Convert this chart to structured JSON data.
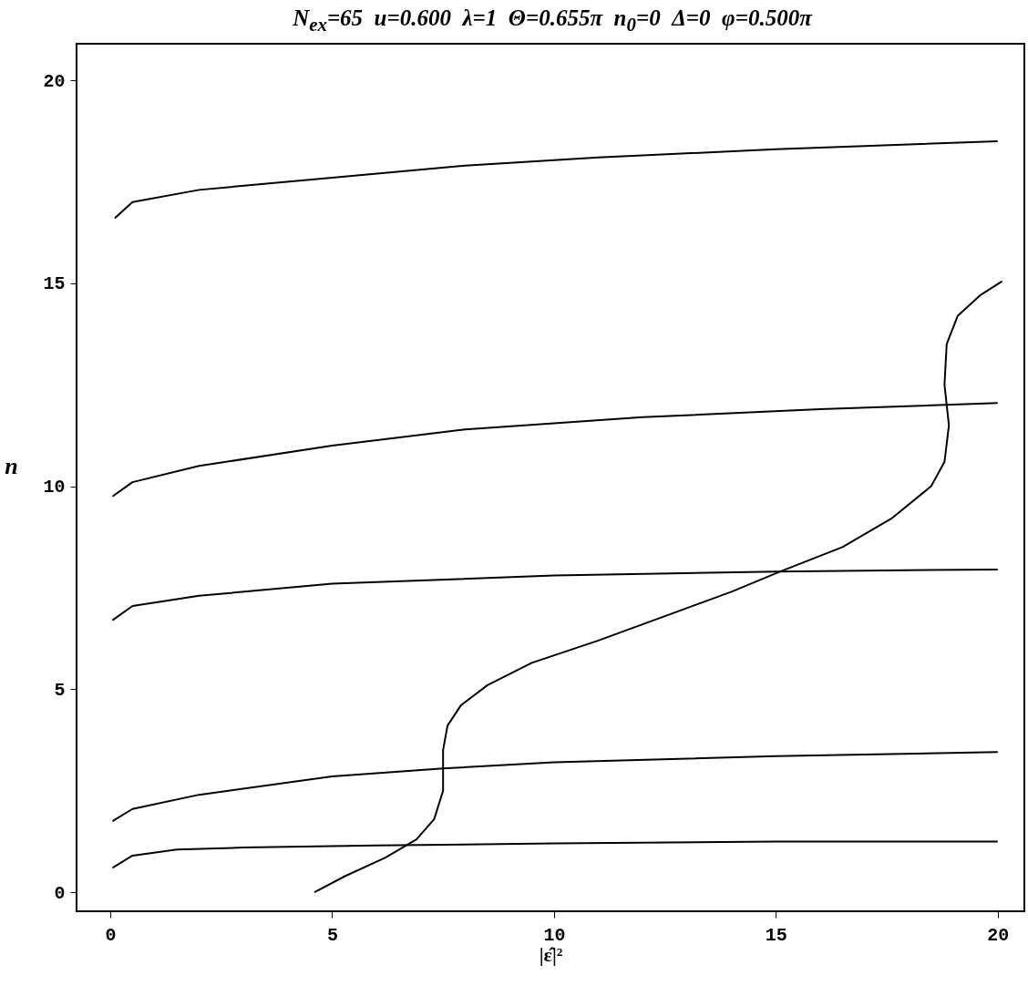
{
  "chart_data": {
    "type": "line",
    "title": "N$_{ex}$=65  u=0.600  λ=1  Θ=0.655π  n$_{0}$=0  Δ=0  φ=0.500π",
    "xlabel": "|ε̂|²",
    "ylabel": "n",
    "xlim": [
      -0.76,
      20.6
    ],
    "ylim": [
      -0.47,
      20.9
    ],
    "xticks": [
      0,
      5,
      10,
      15,
      20
    ],
    "yticks": [
      0,
      5,
      10,
      15,
      20
    ],
    "series": [
      {
        "color": "#000000",
        "x": [
          0.1,
          0.5,
          2,
          5,
          8,
          11,
          15,
          20
        ],
        "values": [
          16.6,
          17.0,
          17.3,
          17.6,
          17.9,
          18.1,
          18.3,
          18.5
        ]
      },
      {
        "color": "#000000",
        "x": [
          0.05,
          0.5,
          2,
          5,
          8,
          12,
          16,
          20
        ],
        "values": [
          9.75,
          10.1,
          10.5,
          11.0,
          11.4,
          11.7,
          11.9,
          12.05
        ]
      },
      {
        "color": "#000000",
        "x": [
          0.05,
          0.5,
          2,
          5,
          10,
          15,
          20
        ],
        "values": [
          6.7,
          7.05,
          7.3,
          7.6,
          7.8,
          7.9,
          7.95
        ]
      },
      {
        "color": "#000000",
        "x": [
          0.05,
          0.5,
          2,
          5,
          7.5,
          10,
          15,
          20
        ],
        "values": [
          1.75,
          2.05,
          2.4,
          2.85,
          3.05,
          3.2,
          3.35,
          3.45
        ]
      },
      {
        "color": "#000000",
        "x": [
          0.05,
          0.5,
          1.5,
          3,
          6,
          10,
          15,
          20
        ],
        "values": [
          0.6,
          0.9,
          1.05,
          1.1,
          1.15,
          1.2,
          1.25,
          1.25
        ]
      },
      {
        "color": "#000000",
        "x": [
          4.6,
          5.3,
          6.2,
          6.9,
          7.3,
          7.5,
          7.5,
          7.6,
          7.9,
          8.5,
          9.5,
          11,
          12.5,
          14,
          15.1,
          16.5,
          17.6,
          18.5,
          18.8,
          18.9,
          18.8,
          18.85,
          19.1,
          19.6,
          20.1
        ],
        "values": [
          0,
          0.4,
          0.85,
          1.3,
          1.8,
          2.5,
          3.5,
          4.1,
          4.6,
          5.1,
          5.65,
          6.2,
          6.8,
          7.4,
          7.9,
          8.5,
          9.2,
          10.0,
          10.6,
          11.5,
          12.5,
          13.5,
          14.2,
          14.7,
          15.05
        ]
      }
    ]
  }
}
